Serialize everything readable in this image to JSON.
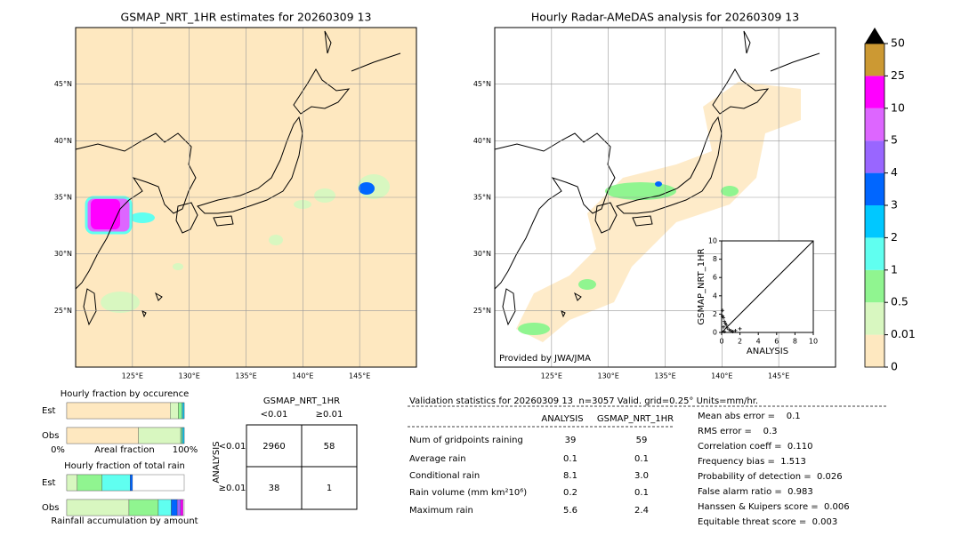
{
  "chart_data": [
    {
      "type": "map",
      "title": "GSMAP_NRT_1HR estimates for 20260309 13",
      "xlim": [
        120,
        150
      ],
      "ylim": [
        20,
        50
      ],
      "xticks": [
        {
          "value": 125,
          "label": "125°E"
        },
        {
          "value": 130,
          "label": "130°E"
        },
        {
          "value": 135,
          "label": "135°E"
        },
        {
          "value": 140,
          "label": "140°E"
        },
        {
          "value": 145,
          "label": "145°E"
        }
      ],
      "yticks": [
        {
          "value": 25,
          "label": "25°N"
        },
        {
          "value": 30,
          "label": "30°N"
        },
        {
          "value": 35,
          "label": "35°N"
        },
        {
          "value": 40,
          "label": "40°N"
        },
        {
          "value": 45,
          "label": "45°N"
        }
      ],
      "grid": true
    },
    {
      "type": "map",
      "title": "Hourly Radar-AMeDAS analysis for 20260309 13",
      "xlim": [
        120,
        150
      ],
      "ylim": [
        20,
        50
      ],
      "xticks": [
        {
          "value": 125,
          "label": "125°E"
        },
        {
          "value": 130,
          "label": "130°E"
        },
        {
          "value": 135,
          "label": "135°E"
        },
        {
          "value": 140,
          "label": "140°E"
        },
        {
          "value": 145,
          "label": "145°E"
        }
      ],
      "yticks": [
        {
          "value": 25,
          "label": "25°N"
        },
        {
          "value": 30,
          "label": "30°N"
        },
        {
          "value": 35,
          "label": "35°N"
        },
        {
          "value": 40,
          "label": "40°N"
        },
        {
          "value": 45,
          "label": "45°N"
        }
      ],
      "grid": true,
      "annotation": "Provided by JWA/JMA"
    },
    {
      "type": "scatter",
      "xlabel": "ANALYSIS",
      "ylabel": "GSMAP_NRT_1HR",
      "xlim": [
        0,
        10
      ],
      "ylim": [
        0,
        10
      ],
      "xticks": [
        0,
        2,
        4,
        6,
        8,
        10
      ],
      "yticks": [
        0,
        2,
        4,
        6,
        8,
        10
      ],
      "x": [
        0.1,
        0.2,
        0.3,
        0.5,
        0.6,
        0.8,
        1.0,
        1.2,
        0.4,
        0.2,
        1.5,
        2.0,
        0.3,
        0.1
      ],
      "y": [
        2.4,
        1.6,
        1.2,
        0.8,
        0.5,
        0.3,
        0.2,
        0.1,
        1.0,
        0.6,
        0.2,
        0.4,
        0.1,
        1.8
      ],
      "color": "#000000"
    },
    {
      "type": "colorbar",
      "levels": [
        0,
        0.01,
        0.5,
        1,
        2,
        3,
        4,
        5,
        10,
        25,
        50
      ],
      "colors": [
        "#fee8c0",
        "#d8f7c0",
        "#90f590",
        "#60fff0",
        "#00c8ff",
        "#0066ff",
        "#9966ff",
        "#dd66ff",
        "#ff00ff",
        "#cc9933"
      ]
    },
    {
      "type": "stacked-bar",
      "title": "Hourly fraction by occurence",
      "categories": [
        "Est",
        "Obs"
      ],
      "xlabel": "Areal fraction",
      "xticks": [
        {
          "value": 0,
          "label": "0%"
        },
        {
          "value": 100,
          "label": "100%"
        }
      ],
      "xlim": [
        0,
        100
      ],
      "series": [
        {
          "color": "#fee8c0",
          "values": [
            88,
            61
          ]
        },
        {
          "color": "#d8f7c0",
          "values": [
            7,
            36
          ]
        },
        {
          "color": "#90f590",
          "values": [
            3,
            1
          ]
        },
        {
          "color": "#60fff0",
          "values": [
            1,
            1
          ]
        },
        {
          "color": "#00c8ff",
          "values": [
            1,
            1
          ]
        }
      ]
    },
    {
      "type": "stacked-bar",
      "title": "Hourly fraction of total rain",
      "categories": [
        "Est",
        "Obs"
      ],
      "xlabel": "Rainfall accumulation by amount",
      "xlim": [
        0,
        100
      ],
      "series": [
        {
          "color": "#d8f7c0",
          "values": [
            9,
            53
          ]
        },
        {
          "color": "#90f590",
          "values": [
            21,
            25
          ]
        },
        {
          "color": "#60fff0",
          "values": [
            24,
            11
          ]
        },
        {
          "color": "#0066ff",
          "values": [
            2,
            5
          ]
        },
        {
          "color": "#9966ff",
          "values": [
            0,
            3
          ]
        },
        {
          "color": "#ff00ff",
          "values": [
            0,
            2
          ]
        }
      ]
    },
    {
      "type": "table",
      "title": "GSMAP_NRT_1HR",
      "columns": [
        "<0.01",
        "≥0.01"
      ],
      "row_title": "ANALYSIS",
      "rows": [
        "<0.01",
        "≥0.01"
      ],
      "cells": [
        [
          "2960",
          "58"
        ],
        [
          "38",
          "1"
        ]
      ]
    },
    {
      "type": "table",
      "title": "Validation statistics for 20260309 13  n=3057 Valid. grid=0.25° Units=mm/hr.",
      "columns": [
        "ANALYSIS",
        "GSMAP_NRT_1HR"
      ],
      "rows": [
        [
          "Num of gridpoints raining",
          "39",
          "59"
        ],
        [
          "Average rain",
          "0.1",
          "0.1"
        ],
        [
          "Conditional rain",
          "8.1",
          "3.0"
        ],
        [
          "Rain volume (mm km²10⁶)",
          "0.2",
          "0.1"
        ],
        [
          "Maximum rain",
          "5.6",
          "2.4"
        ]
      ],
      "scores": [
        "Mean abs error =    0.1",
        "RMS error =    0.3",
        "Correlation coeff =  0.110",
        "Frequency bias =  1.513",
        "Probability of detection =  0.026",
        "False alarm ratio =  0.983",
        "Hanssen & Kuipers score =  0.006",
        "Equitable threat score =  0.003"
      ]
    }
  ]
}
